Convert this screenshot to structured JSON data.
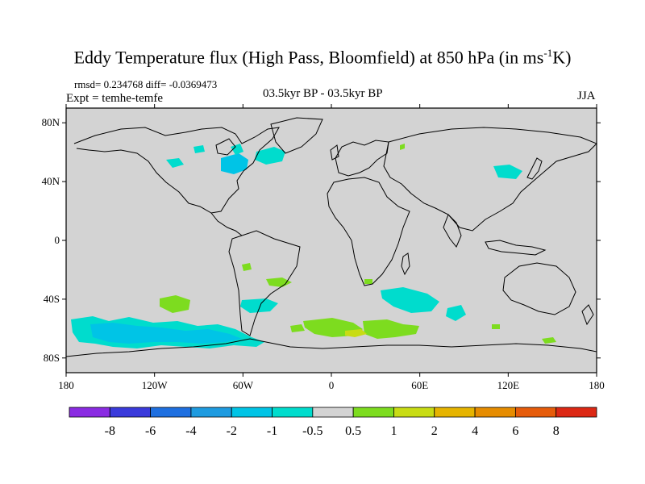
{
  "title": {
    "text": "Eddy Temperature flux (High Pass, Bloomfield) at 850 hPa (in ms",
    "sup": "-1",
    "suffix": "K)"
  },
  "stats": "rmsd= 0.234768 diff= -0.0369473",
  "experiment": "Expt = temhe-temfe",
  "period": "03.5kyr BP - 03.5kyr BP",
  "season": "JJA",
  "axes": {
    "lat_labels": [
      "80N",
      "40N",
      "0",
      "40S",
      "80S"
    ],
    "lat_values": [
      80,
      40,
      0,
      -40,
      -80
    ],
    "lon_labels": [
      "180",
      "120W",
      "60W",
      "0",
      "60E",
      "120E",
      "180"
    ],
    "lon_values": [
      -180,
      -120,
      -60,
      0,
      60,
      120,
      180
    ]
  },
  "colorbar": {
    "labels": [
      "-8",
      "-6",
      "-4",
      "-2",
      "-1",
      "-0.5",
      "0.5",
      "1",
      "2",
      "4",
      "6",
      "8"
    ],
    "colors": [
      "#8a2be2",
      "#3a3adb",
      "#1e6fe0",
      "#1e9be0",
      "#00c4e6",
      "#00dccd",
      "#d3d3d3",
      "#7ddc1f",
      "#c8dc14",
      "#e6b400",
      "#e68c00",
      "#e65c0a",
      "#dc2814"
    ]
  },
  "map_background": "#d3d3d3"
}
